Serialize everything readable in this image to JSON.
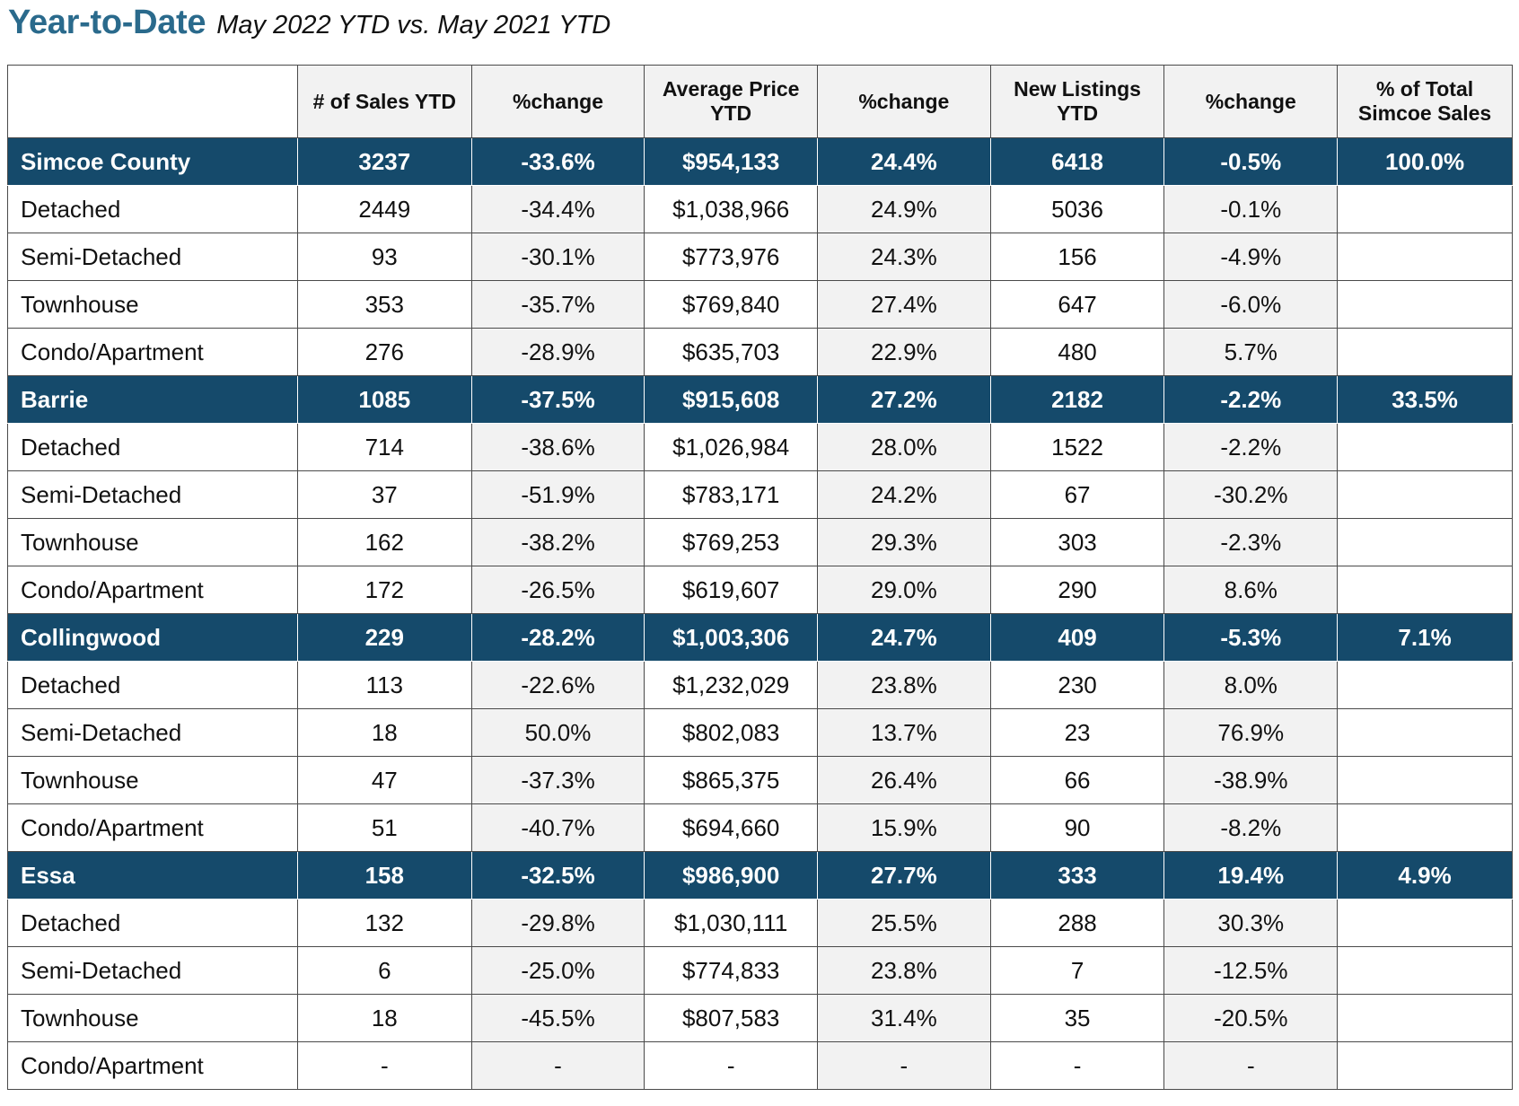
{
  "header": {
    "title": "Year-to-Date",
    "subtitle": "May 2022 YTD vs. May 2021 YTD"
  },
  "colors": {
    "title": "#2a6a8c",
    "region_row_bg": "#154a6b",
    "shaded_cell": "#f2f2f2"
  },
  "table": {
    "columns": [
      "",
      "# of Sales YTD",
      "%change",
      "Average Price YTD",
      "%change",
      "New Listings YTD",
      "%change",
      "% of Total Simcoe Sales"
    ],
    "rows": [
      {
        "type": "region",
        "cells": [
          "Simcoe County",
          "3237",
          "-33.6%",
          "$954,133",
          "24.4%",
          "6418",
          "-0.5%",
          "100.0%"
        ]
      },
      {
        "type": "sub",
        "cells": [
          "Detached",
          "2449",
          "-34.4%",
          "$1,038,966",
          "24.9%",
          "5036",
          "-0.1%",
          ""
        ]
      },
      {
        "type": "sub",
        "cells": [
          "Semi-Detached",
          "93",
          "-30.1%",
          "$773,976",
          "24.3%",
          "156",
          "-4.9%",
          ""
        ]
      },
      {
        "type": "sub",
        "cells": [
          "Townhouse",
          "353",
          "-35.7%",
          "$769,840",
          "27.4%",
          "647",
          "-6.0%",
          ""
        ]
      },
      {
        "type": "sub",
        "cells": [
          "Condo/Apartment",
          "276",
          "-28.9%",
          "$635,703",
          "22.9%",
          "480",
          "5.7%",
          ""
        ]
      },
      {
        "type": "region",
        "cells": [
          "Barrie",
          "1085",
          "-37.5%",
          "$915,608",
          "27.2%",
          "2182",
          "-2.2%",
          "33.5%"
        ]
      },
      {
        "type": "sub",
        "cells": [
          "Detached",
          "714",
          "-38.6%",
          "$1,026,984",
          "28.0%",
          "1522",
          "-2.2%",
          ""
        ]
      },
      {
        "type": "sub",
        "cells": [
          "Semi-Detached",
          "37",
          "-51.9%",
          "$783,171",
          "24.2%",
          "67",
          "-30.2%",
          ""
        ]
      },
      {
        "type": "sub",
        "cells": [
          "Townhouse",
          "162",
          "-38.2%",
          "$769,253",
          "29.3%",
          "303",
          "-2.3%",
          ""
        ]
      },
      {
        "type": "sub",
        "cells": [
          "Condo/Apartment",
          "172",
          "-26.5%",
          "$619,607",
          "29.0%",
          "290",
          "8.6%",
          ""
        ]
      },
      {
        "type": "region",
        "cells": [
          "Collingwood",
          "229",
          "-28.2%",
          "$1,003,306",
          "24.7%",
          "409",
          "-5.3%",
          "7.1%"
        ]
      },
      {
        "type": "sub",
        "cells": [
          "Detached",
          "113",
          "-22.6%",
          "$1,232,029",
          "23.8%",
          "230",
          "8.0%",
          ""
        ]
      },
      {
        "type": "sub",
        "cells": [
          "Semi-Detached",
          "18",
          "50.0%",
          "$802,083",
          "13.7%",
          "23",
          "76.9%",
          ""
        ]
      },
      {
        "type": "sub",
        "cells": [
          "Townhouse",
          "47",
          "-37.3%",
          "$865,375",
          "26.4%",
          "66",
          "-38.9%",
          ""
        ]
      },
      {
        "type": "sub",
        "cells": [
          "Condo/Apartment",
          "51",
          "-40.7%",
          "$694,660",
          "15.9%",
          "90",
          "-8.2%",
          ""
        ]
      },
      {
        "type": "region",
        "cells": [
          "Essa",
          "158",
          "-32.5%",
          "$986,900",
          "27.7%",
          "333",
          "19.4%",
          "4.9%"
        ]
      },
      {
        "type": "sub",
        "cells": [
          "Detached",
          "132",
          "-29.8%",
          "$1,030,111",
          "25.5%",
          "288",
          "30.3%",
          ""
        ]
      },
      {
        "type": "sub",
        "cells": [
          "Semi-Detached",
          "6",
          "-25.0%",
          "$774,833",
          "23.8%",
          "7",
          "-12.5%",
          ""
        ]
      },
      {
        "type": "sub",
        "cells": [
          "Townhouse",
          "18",
          "-45.5%",
          "$807,583",
          "31.4%",
          "35",
          "-20.5%",
          ""
        ]
      },
      {
        "type": "sub",
        "cells": [
          "Condo/Apartment",
          "-",
          "-",
          "-",
          "-",
          "-",
          "-",
          ""
        ]
      }
    ]
  }
}
